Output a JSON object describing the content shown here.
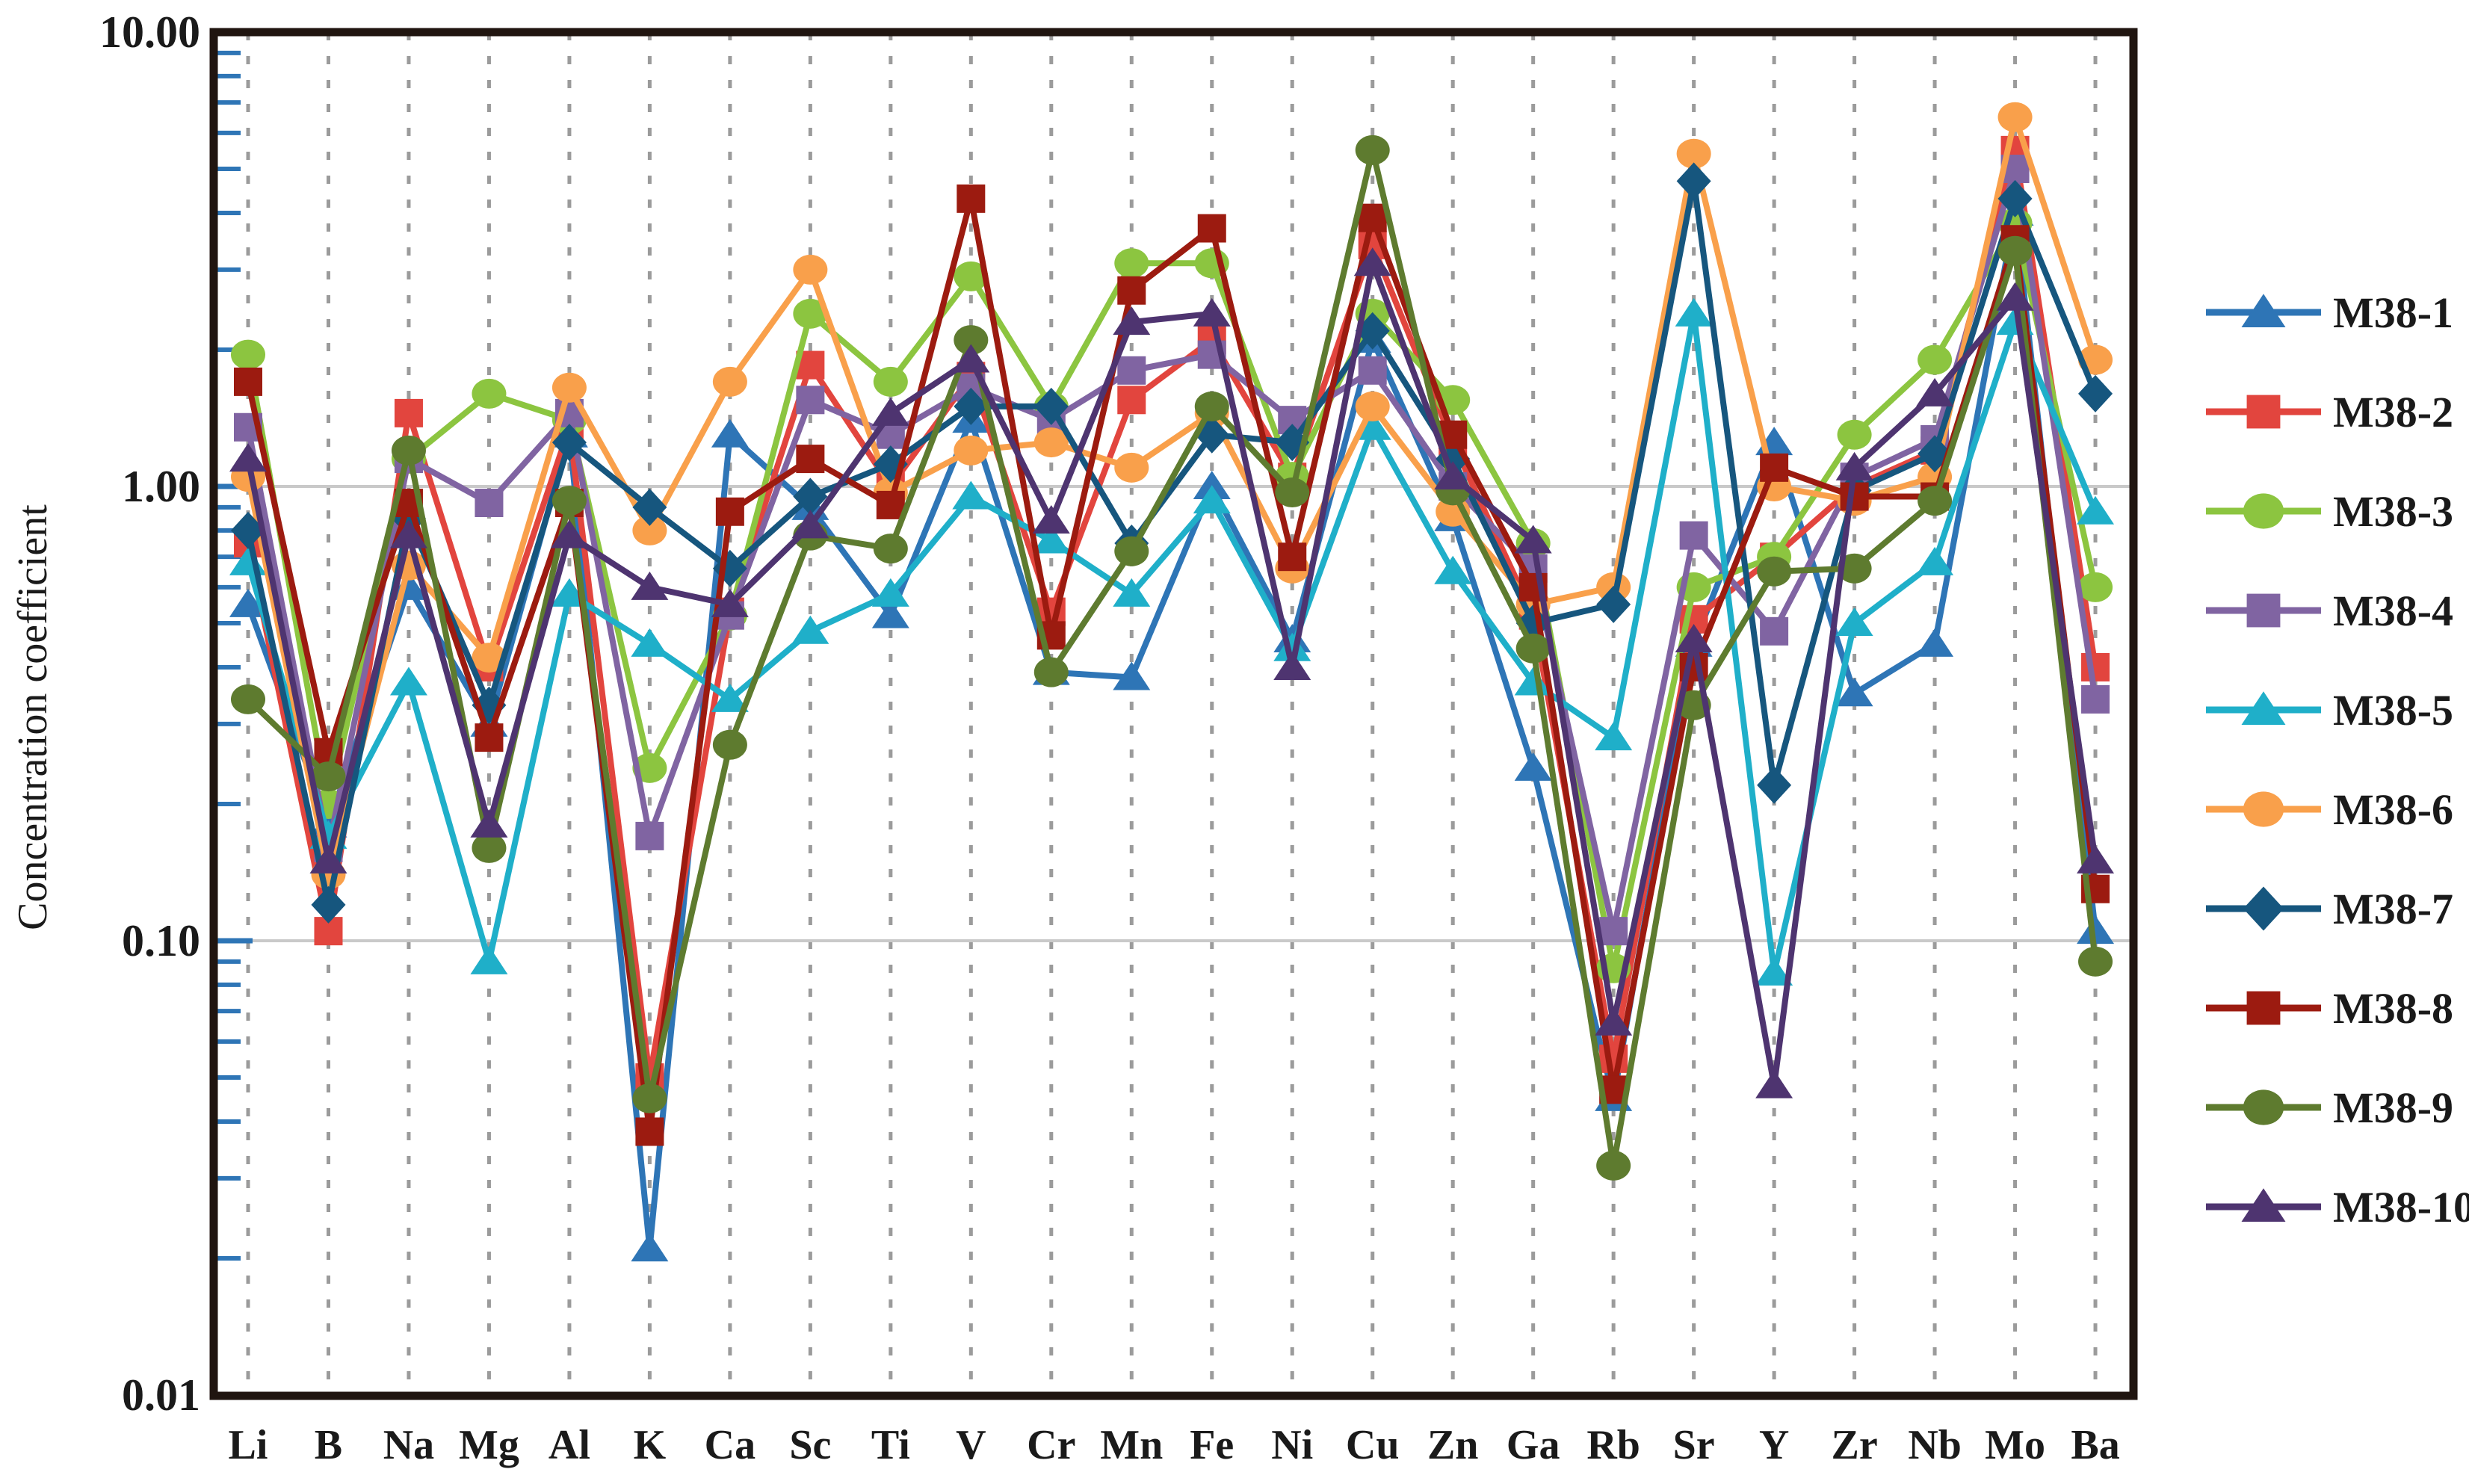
{
  "figure": {
    "y_axis_label": "Concentration coefficient",
    "y_tick_labels": [
      "10.00",
      "1.00",
      "0.10",
      "0.01"
    ]
  },
  "chart_data": {
    "type": "line",
    "title": "",
    "xlabel": "",
    "ylabel": "Concentration coefficient",
    "yscale": "log",
    "ylim": [
      0.01,
      10.0
    ],
    "grid": {
      "vertical_dashed": true,
      "horizontal_solid_at": [
        1.0,
        0.1
      ]
    },
    "legend_position": "right",
    "x": [
      "Li",
      "B",
      "Na",
      "Mg",
      "Al",
      "K",
      "Ca",
      "Sc",
      "Ti",
      "V",
      "Cr",
      "Mn",
      "Fe",
      "Ni",
      "Cu",
      "Zn",
      "Ga",
      "Rb",
      "Sr",
      "Y",
      "Zr",
      "Nb",
      "Mo",
      "Ba"
    ],
    "y_tick_labels": [
      "10.00",
      "1.00",
      "0.10",
      "0.01"
    ],
    "y_tick_values": [
      10.0,
      1.0,
      0.1,
      0.01
    ],
    "series": [
      {
        "name": "M38-1",
        "color": "#2E75B6",
        "marker": "triangle",
        "values": [
          0.55,
          0.18,
          0.6,
          0.3,
          1.3,
          0.021,
          1.3,
          0.9,
          0.52,
          1.4,
          0.39,
          0.38,
          1.0,
          0.46,
          2.1,
          0.85,
          0.24,
          0.045,
          0.45,
          1.25,
          0.35,
          0.45,
          4.0,
          0.105
        ]
      },
      {
        "name": "M38-2",
        "color": "#E2453E",
        "marker": "square",
        "values": [
          0.75,
          0.105,
          1.45,
          0.4,
          1.35,
          0.05,
          0.53,
          1.85,
          1.0,
          1.75,
          0.53,
          1.55,
          2.1,
          1.05,
          3.4,
          1.25,
          0.52,
          0.055,
          0.51,
          0.7,
          1.0,
          1.2,
          5.5,
          0.4
        ]
      },
      {
        "name": "M38-3",
        "color": "#8CC540",
        "marker": "circle",
        "values": [
          1.95,
          0.2,
          1.15,
          1.6,
          1.4,
          0.24,
          0.52,
          2.4,
          1.7,
          2.9,
          1.5,
          3.1,
          3.1,
          1.05,
          2.4,
          1.55,
          0.75,
          0.087,
          0.6,
          0.7,
          1.3,
          1.9,
          3.8,
          0.6
        ]
      },
      {
        "name": "M38-4",
        "color": "#8064A2",
        "marker": "square",
        "values": [
          1.35,
          0.16,
          1.15,
          0.92,
          1.45,
          0.17,
          0.52,
          1.55,
          1.3,
          1.65,
          1.4,
          1.8,
          1.95,
          1.4,
          1.8,
          1.0,
          0.66,
          0.105,
          0.78,
          0.48,
          1.05,
          1.27,
          5.0,
          0.34
        ]
      },
      {
        "name": "M38-5",
        "color": "#1FAFC9",
        "marker": "triangle",
        "values": [
          0.68,
          0.17,
          0.37,
          0.09,
          0.58,
          0.45,
          0.34,
          0.48,
          0.58,
          0.95,
          0.76,
          0.58,
          0.93,
          0.44,
          1.35,
          0.65,
          0.37,
          0.28,
          2.4,
          0.085,
          0.5,
          0.68,
          2.3,
          0.88
        ]
      },
      {
        "name": "M38-6",
        "color": "#F9A04B",
        "marker": "circle",
        "values": [
          1.05,
          0.14,
          0.67,
          0.42,
          1.65,
          0.8,
          1.7,
          3.0,
          0.97,
          1.2,
          1.25,
          1.1,
          1.45,
          0.66,
          1.5,
          0.88,
          0.55,
          0.6,
          5.4,
          1.0,
          0.93,
          1.05,
          6.5,
          1.9
        ]
      },
      {
        "name": "M38-7",
        "color": "#16567E",
        "marker": "diamond",
        "values": [
          0.8,
          0.12,
          0.85,
          0.33,
          1.25,
          0.9,
          0.66,
          0.95,
          1.12,
          1.5,
          1.5,
          0.75,
          1.3,
          1.25,
          2.2,
          1.15,
          0.5,
          0.55,
          4.7,
          0.22,
          0.98,
          1.18,
          4.3,
          1.6
        ]
      },
      {
        "name": "M38-8",
        "color": "#9C1B10",
        "marker": "square",
        "values": [
          1.7,
          0.26,
          0.92,
          0.28,
          0.92,
          0.038,
          0.88,
          1.15,
          0.91,
          4.3,
          0.47,
          2.7,
          3.7,
          0.7,
          3.9,
          1.3,
          0.6,
          0.047,
          0.4,
          1.1,
          0.95,
          0.95,
          3.5,
          0.13
        ]
      },
      {
        "name": "M38-9",
        "color": "#5E7B2F",
        "marker": "circle",
        "values": [
          0.34,
          0.23,
          1.2,
          0.16,
          0.93,
          0.045,
          0.27,
          0.78,
          0.73,
          2.1,
          0.39,
          0.72,
          1.5,
          0.97,
          5.5,
          0.98,
          0.44,
          0.032,
          0.33,
          0.65,
          0.66,
          0.93,
          3.3,
          0.09
        ]
      },
      {
        "name": "M38-10",
        "color": "#4E3470",
        "marker": "triangle",
        "values": [
          1.15,
          0.15,
          0.78,
          0.18,
          0.78,
          0.6,
          0.55,
          0.82,
          1.45,
          1.9,
          0.84,
          2.3,
          2.4,
          0.4,
          3.1,
          1.05,
          0.76,
          0.066,
          0.46,
          0.048,
          1.1,
          1.6,
          2.6,
          0.15
        ]
      }
    ],
    "style": {
      "frame_color": "#201510",
      "grid_dash_color": "#9B9B9B",
      "grid_solid_color": "#C9C9C9",
      "tick_color": "#2E75B6",
      "text_color": "#1A1A1A"
    }
  }
}
